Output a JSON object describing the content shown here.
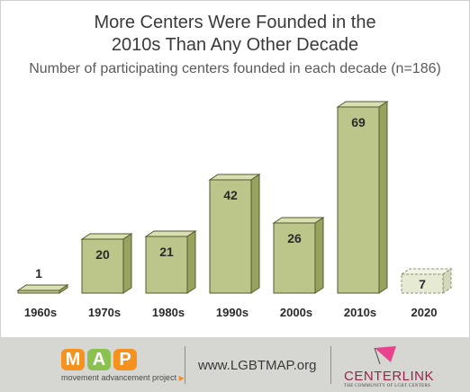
{
  "chart_data": {
    "type": "bar",
    "title_line1": "More Centers Were Founded in the",
    "title_line2": "2010s Than Any Other Decade",
    "subtitle": "Number of participating centers founded in each decade (n=186)",
    "categories": [
      "1960s",
      "1970s",
      "1980s",
      "1990s",
      "2000s",
      "2010s",
      "2020"
    ],
    "values": [
      1,
      20,
      21,
      42,
      26,
      69,
      7
    ],
    "highlight_last_as_partial": true,
    "ylim": [
      0,
      70
    ],
    "grid": false,
    "bar_colors": {
      "front": "#bcc58a",
      "top": "#d9dfb1",
      "side": "#98a35f",
      "outline": "#55582f"
    },
    "partial_bar_colors": {
      "front": "#e7ead3",
      "top": "#f1f3e4",
      "side": "#d3d7bb",
      "outline": "#8e9071"
    }
  },
  "footer": {
    "map_letters": [
      "M",
      "A",
      "P"
    ],
    "map_letter_colors": [
      "#f5921e",
      "#8cc152",
      "#f5921e"
    ],
    "map_tagline": "movement advancement project",
    "website": "www.LGBTMAP.org",
    "centerlink_name": "CENTERLINK",
    "centerlink_tagline": "THE COMMUNITY OF LGBT CENTERS",
    "centerlink_accent": "#e8438c"
  }
}
